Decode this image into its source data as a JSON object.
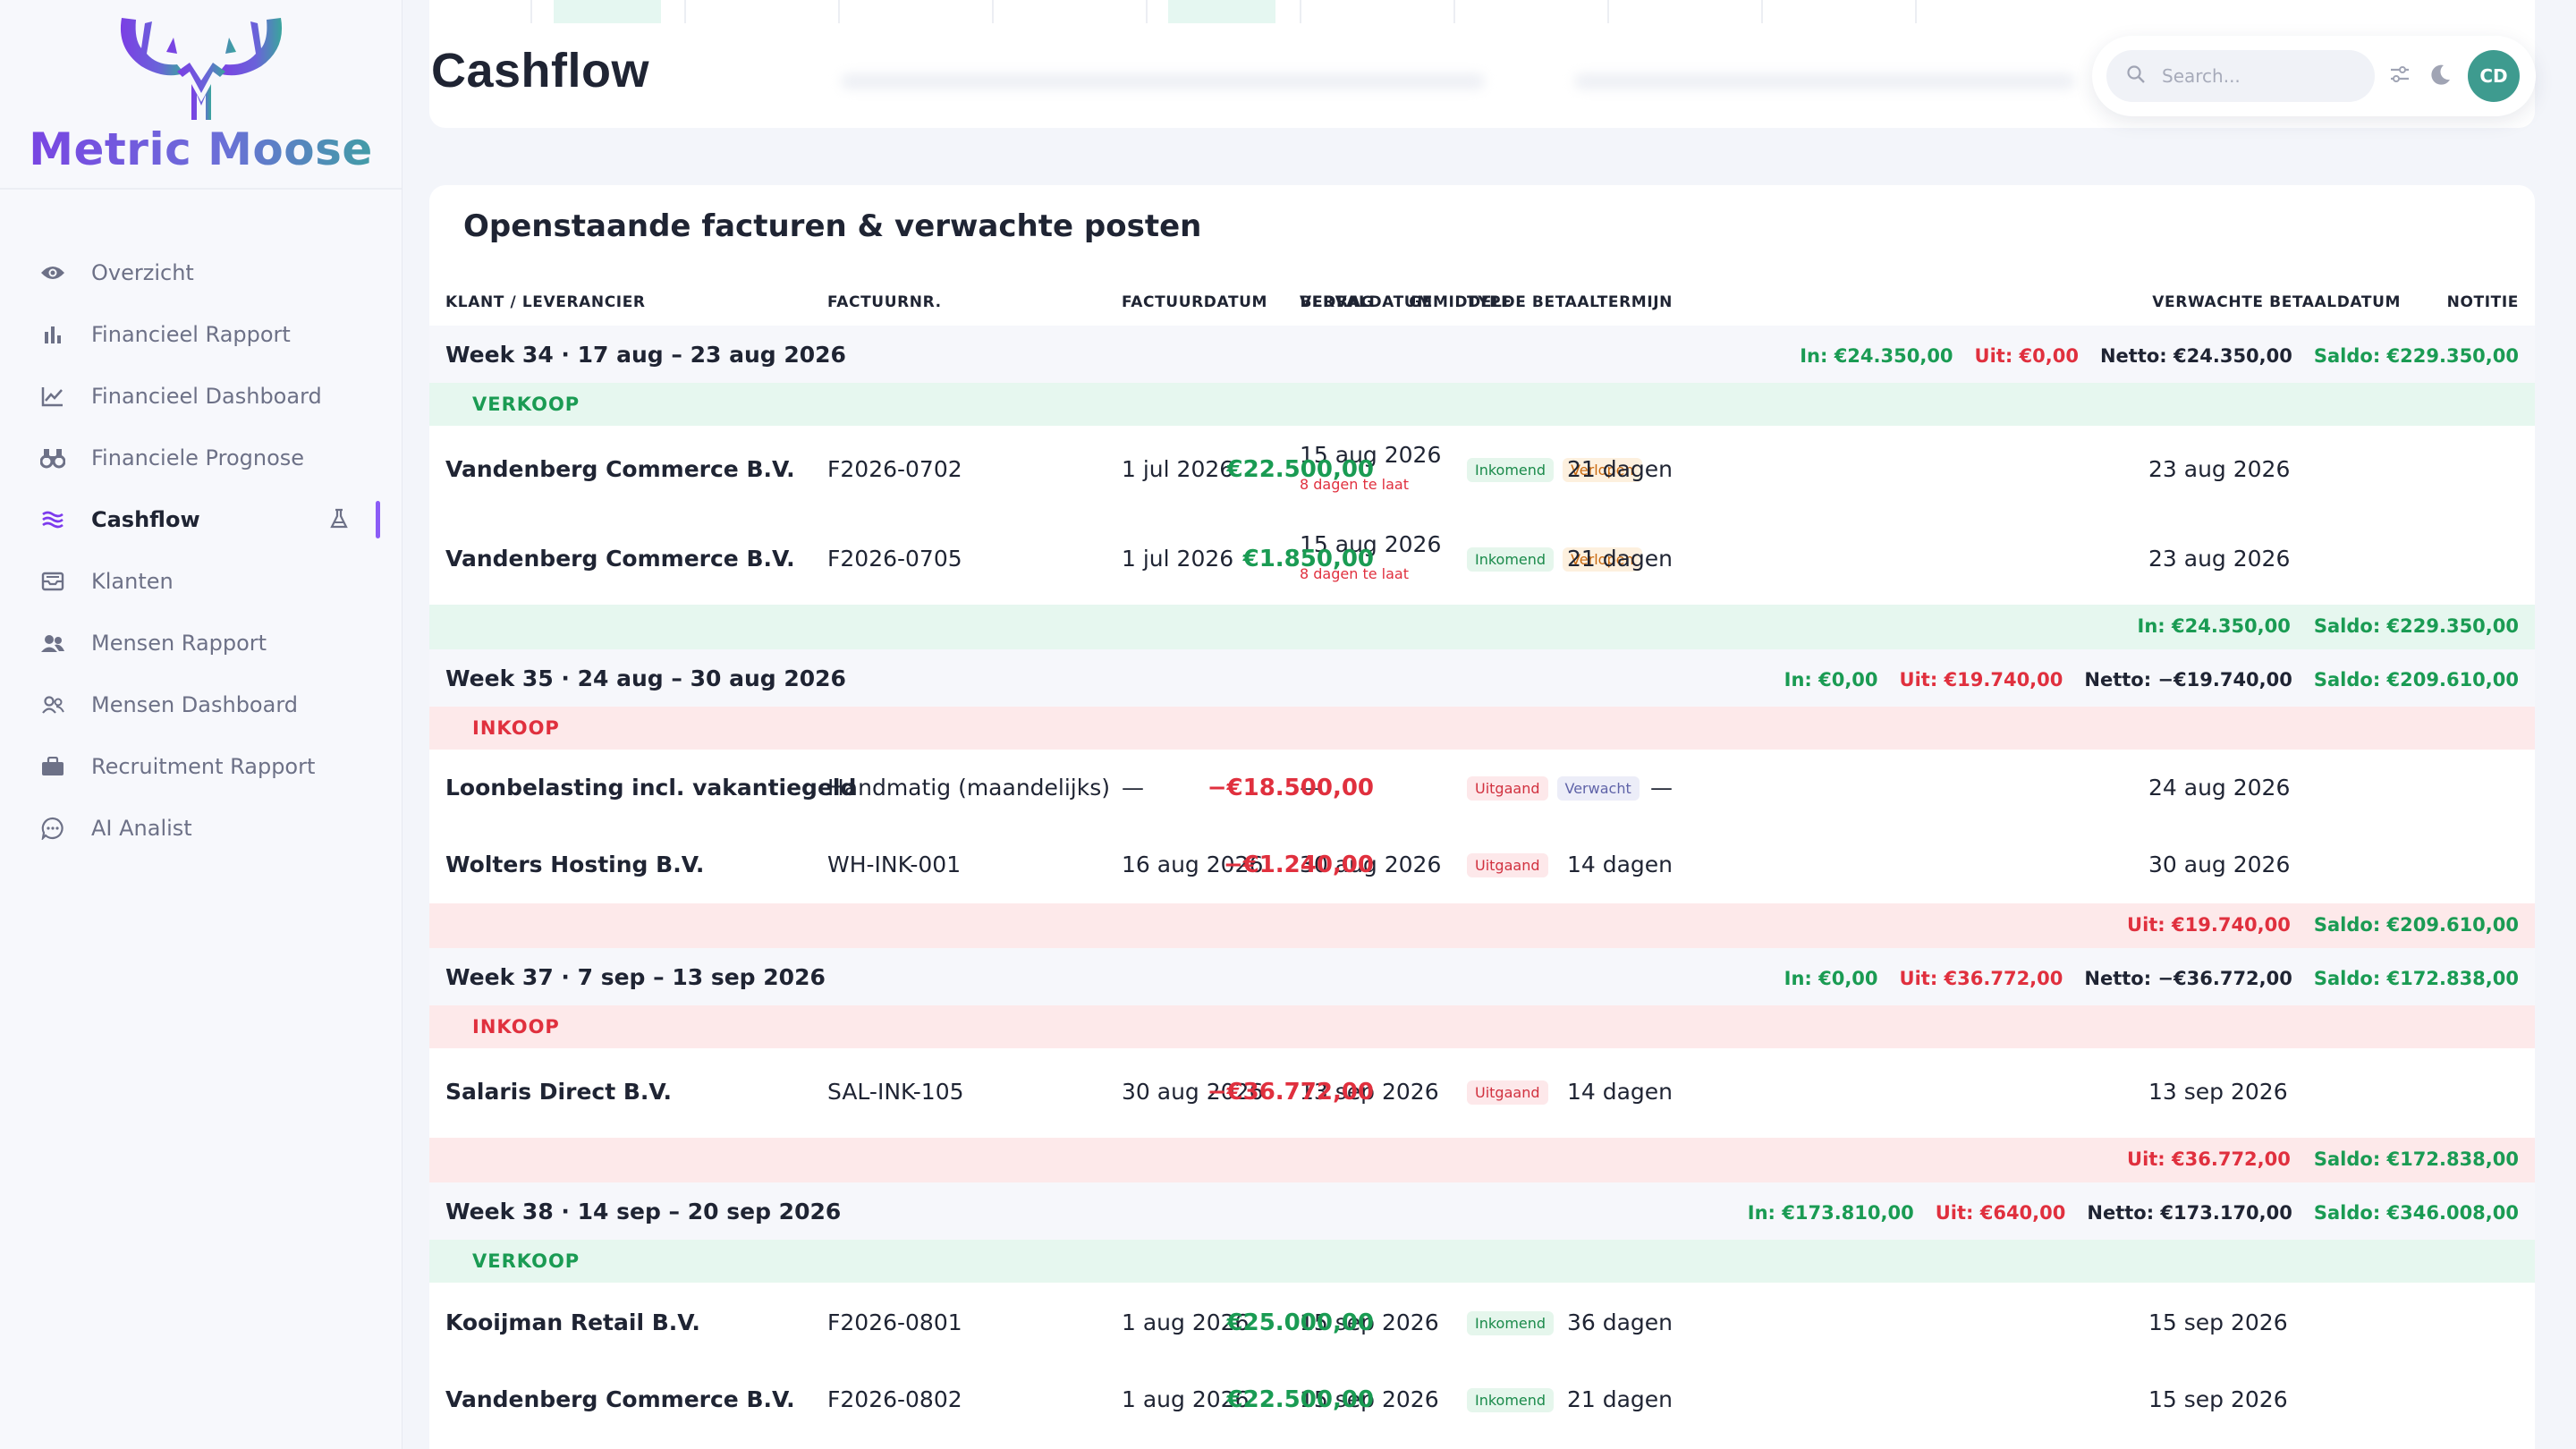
{
  "app": {
    "name": "Metric Moose"
  },
  "sidebar": {
    "items": [
      {
        "label": "Overzicht",
        "icon": "eye-icon"
      },
      {
        "label": "Financieel Rapport",
        "icon": "bar-chart-icon"
      },
      {
        "label": "Financieel Dashboard",
        "icon": "line-chart-icon"
      },
      {
        "label": "Financiele Prognose",
        "icon": "binoculars-icon"
      },
      {
        "label": "Cashflow",
        "icon": "waves-icon",
        "active": true
      },
      {
        "label": "Klanten",
        "icon": "inbox-icon"
      },
      {
        "label": "Mensen Rapport",
        "icon": "users-icon"
      },
      {
        "label": "Mensen Dashboard",
        "icon": "users-outline-icon"
      },
      {
        "label": "Recruitment Rapport",
        "icon": "briefcase-icon"
      },
      {
        "label": "AI Analist",
        "icon": "chat-icon"
      }
    ]
  },
  "header": {
    "title": "Cashflow",
    "search_placeholder": "Search...",
    "avatar_initials": "CD"
  },
  "table": {
    "title": "Openstaande facturen & verwachte posten",
    "columns": [
      "KLANT / LEVERANCIER",
      "FACTUURNR.",
      "FACTUURDATUM",
      "VERVALDATUM",
      "TYPE",
      "BEDRAG",
      "GEMIDDELDE BETAALTERMIJN",
      "VERWACHTE BETAALDATUM",
      "NOTITIE"
    ],
    "weeks": [
      {
        "label": "Week 34 · 17 aug – 23 aug 2026",
        "in": "In: €24.350,00",
        "out": "Uit: €0,00",
        "net": "Netto: €24.350,00",
        "saldo": "Saldo: €229.350,00",
        "section": "VERKOOP",
        "section_type": "verkoop",
        "rows": [
          {
            "name": "Vandenberg Commerce B.V.",
            "invoice": "F2026-0702",
            "invoice_date": "1 jul 2026",
            "due_date": "15 aug 2026",
            "late": "8 dagen te laat",
            "badges": [
              {
                "text": "Inkomend",
                "kind": "in"
              },
              {
                "text": "Verlopen",
                "kind": "late"
              }
            ],
            "amount": "€22.500,00",
            "sign": "pos",
            "term": "21 dagen",
            "expected": "23 aug 2026"
          },
          {
            "name": "Vandenberg Commerce B.V.",
            "invoice": "F2026-0705",
            "invoice_date": "1 jul 2026",
            "due_date": "15 aug 2026",
            "late": "8 dagen te laat",
            "badges": [
              {
                "text": "Inkomend",
                "kind": "in"
              },
              {
                "text": "Verlopen",
                "kind": "late"
              }
            ],
            "amount": "€1.850,00",
            "sign": "pos",
            "term": "21 dagen",
            "expected": "23 aug 2026"
          }
        ],
        "summary": [
          "In: €24.350,00",
          "Saldo: €229.350,00"
        ],
        "summary_kinds": [
          "in",
          "sal"
        ],
        "summary_type": "green"
      },
      {
        "label": "Week 35 · 24 aug – 30 aug 2026",
        "in": "In: €0,00",
        "out": "Uit: €19.740,00",
        "net": "Netto: −€19.740,00",
        "saldo": "Saldo: €209.610,00",
        "section": "INKOOP",
        "section_type": "inkoop",
        "rows": [
          {
            "name": "Loonbelasting incl. vakantiegeld",
            "invoice": "Handmatig (maandelijks)",
            "invoice_date": "—",
            "due_date": "—",
            "late": "",
            "badges": [
              {
                "text": "Uitgaand",
                "kind": "out"
              },
              {
                "text": "Verwacht",
                "kind": "exp"
              }
            ],
            "amount": "−€18.500,00",
            "sign": "neg",
            "term": "—",
            "expected": "24 aug 2026"
          },
          {
            "name": "Wolters Hosting B.V.",
            "invoice": "WH-INK-001",
            "invoice_date": "16 aug 2026",
            "due_date": "30 aug 2026",
            "late": "",
            "badges": [
              {
                "text": "Uitgaand",
                "kind": "out"
              }
            ],
            "amount": "−€1.240,00",
            "sign": "neg",
            "term": "14 dagen",
            "expected": "30 aug 2026"
          }
        ],
        "summary": [
          "Uit: €19.740,00",
          "Saldo: €209.610,00"
        ],
        "summary_kinds": [
          "out",
          "sal"
        ],
        "summary_type": "red"
      },
      {
        "label": "Week 37 · 7 sep – 13 sep 2026",
        "in": "In: €0,00",
        "out": "Uit: €36.772,00",
        "net": "Netto: −€36.772,00",
        "saldo": "Saldo: €172.838,00",
        "section": "INKOOP",
        "section_type": "inkoop",
        "rows": [
          {
            "name": "Salaris Direct B.V.",
            "invoice": "SAL-INK-105",
            "invoice_date": "30 aug 2026",
            "due_date": "13 sep 2026",
            "late": "",
            "badges": [
              {
                "text": "Uitgaand",
                "kind": "out"
              }
            ],
            "amount": "−€36.772,00",
            "sign": "neg",
            "term": "14 dagen",
            "expected": "13 sep 2026"
          }
        ],
        "summary": [
          "Uit: €36.772,00",
          "Saldo: €172.838,00"
        ],
        "summary_kinds": [
          "out",
          "sal"
        ],
        "summary_type": "red"
      },
      {
        "label": "Week 38 · 14 sep – 20 sep 2026",
        "in": "In: €173.810,00",
        "out": "Uit: €640,00",
        "net": "Netto: €173.170,00",
        "saldo": "Saldo: €346.008,00",
        "section": "VERKOOP",
        "section_type": "verkoop",
        "rows": [
          {
            "name": "Kooijman Retail B.V.",
            "invoice": "F2026-0801",
            "invoice_date": "1 aug 2026",
            "due_date": "15 sep 2026",
            "late": "",
            "badges": [
              {
                "text": "Inkomend",
                "kind": "in"
              }
            ],
            "amount": "€25.000,00",
            "sign": "pos",
            "term": "36 dagen",
            "expected": "15 sep 2026"
          },
          {
            "name": "Vandenberg Commerce B.V.",
            "invoice": "F2026-0802",
            "invoice_date": "1 aug 2026",
            "due_date": "15 sep 2026",
            "late": "",
            "badges": [
              {
                "text": "Inkomend",
                "kind": "in"
              }
            ],
            "amount": "€22.500,00",
            "sign": "pos",
            "term": "21 dagen",
            "expected": "15 sep 2026"
          }
        ],
        "summary": [],
        "summary_kinds": [],
        "summary_type": ""
      }
    ]
  }
}
